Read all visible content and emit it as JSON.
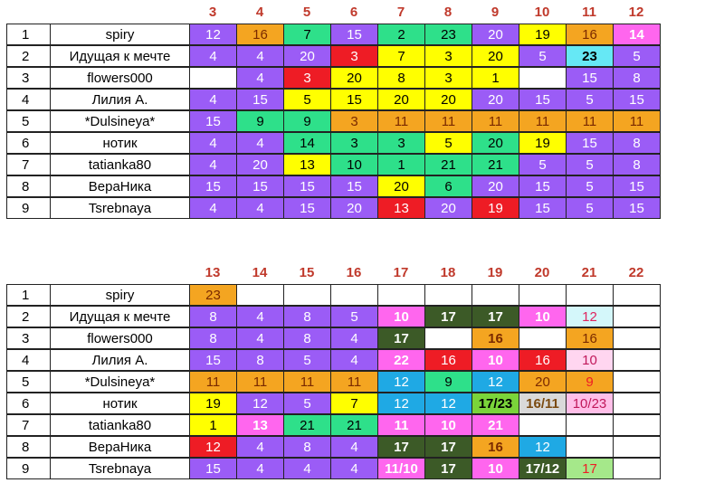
{
  "colors": {
    "P": "#9b5cf6",
    "O": "#f4a521",
    "G": "#2ee08a",
    "R": "#ee1c25",
    "Y": "#ffff00",
    "K": "#ff66ee",
    "C": "#66e8f5",
    "W": "#ffffff",
    "D": "#3c5a27",
    "B": "#1fa9e4",
    "L": "#7ad43a",
    "LG": "#a5e88a",
    "LP": "#ffbfe8",
    "PC": "#ffd6f0",
    "LC": "#d4f7fa",
    "T": "#d9d9d9"
  },
  "table1": {
    "headers": [
      "3",
      "4",
      "5",
      "6",
      "7",
      "8",
      "9",
      "10",
      "11",
      "12"
    ],
    "rows": [
      {
        "num": "1",
        "name": "spiry",
        "cells": [
          {
            "v": "12",
            "bg": "P"
          },
          {
            "v": "16",
            "bg": "O",
            "fg": "#7a2a00"
          },
          {
            "v": "7",
            "bg": "G",
            "fg": "#000"
          },
          {
            "v": "15",
            "bg": "P"
          },
          {
            "v": "2",
            "bg": "G",
            "fg": "#000"
          },
          {
            "v": "23",
            "bg": "G",
            "fg": "#000"
          },
          {
            "v": "20",
            "bg": "P"
          },
          {
            "v": "19",
            "bg": "Y",
            "fg": "#000"
          },
          {
            "v": "16",
            "bg": "O",
            "fg": "#7a2a00"
          },
          {
            "v": "14",
            "bg": "K",
            "b": true
          }
        ]
      },
      {
        "num": "2",
        "name": "Идущая к мечте",
        "cells": [
          {
            "v": "4",
            "bg": "P"
          },
          {
            "v": "4",
            "bg": "P"
          },
          {
            "v": "20",
            "bg": "P"
          },
          {
            "v": "3",
            "bg": "R"
          },
          {
            "v": "7",
            "bg": "Y",
            "fg": "#000"
          },
          {
            "v": "3",
            "bg": "Y",
            "fg": "#000"
          },
          {
            "v": "20",
            "bg": "Y",
            "fg": "#000"
          },
          {
            "v": "5",
            "bg": "P"
          },
          {
            "v": "23",
            "bg": "C",
            "fg": "#000",
            "b": true
          },
          {
            "v": "5",
            "bg": "P"
          }
        ]
      },
      {
        "num": "3",
        "name": "flowers000",
        "cells": [
          {
            "v": "",
            "bg": "W"
          },
          {
            "v": "4",
            "bg": "P"
          },
          {
            "v": "3",
            "bg": "R"
          },
          {
            "v": "20",
            "bg": "Y",
            "fg": "#000"
          },
          {
            "v": "8",
            "bg": "Y",
            "fg": "#000"
          },
          {
            "v": "3",
            "bg": "Y",
            "fg": "#000"
          },
          {
            "v": "1",
            "bg": "Y",
            "fg": "#000"
          },
          {
            "v": "",
            "bg": "W"
          },
          {
            "v": "15",
            "bg": "P"
          },
          {
            "v": "8",
            "bg": "P"
          }
        ]
      },
      {
        "num": "4",
        "name": "Лилия А.",
        "cells": [
          {
            "v": "4",
            "bg": "P"
          },
          {
            "v": "15",
            "bg": "P"
          },
          {
            "v": "5",
            "bg": "Y",
            "fg": "#000"
          },
          {
            "v": "15",
            "bg": "Y",
            "fg": "#000"
          },
          {
            "v": "20",
            "bg": "Y",
            "fg": "#000"
          },
          {
            "v": "20",
            "bg": "Y",
            "fg": "#000"
          },
          {
            "v": "20",
            "bg": "P"
          },
          {
            "v": "15",
            "bg": "P"
          },
          {
            "v": "5",
            "bg": "P"
          },
          {
            "v": "15",
            "bg": "P"
          }
        ]
      },
      {
        "num": "5",
        "name": "*Dulsineya*",
        "cells": [
          {
            "v": "15",
            "bg": "P"
          },
          {
            "v": "9",
            "bg": "G",
            "fg": "#000"
          },
          {
            "v": "9",
            "bg": "G",
            "fg": "#000"
          },
          {
            "v": "3",
            "bg": "O",
            "fg": "#7a2a00"
          },
          {
            "v": "11",
            "bg": "O",
            "fg": "#7a2a00"
          },
          {
            "v": "11",
            "bg": "O",
            "fg": "#7a2a00"
          },
          {
            "v": "11",
            "bg": "O",
            "fg": "#7a2a00"
          },
          {
            "v": "11",
            "bg": "O",
            "fg": "#7a2a00"
          },
          {
            "v": "11",
            "bg": "O",
            "fg": "#7a2a00"
          },
          {
            "v": "11",
            "bg": "O",
            "fg": "#7a2a00"
          }
        ]
      },
      {
        "num": "6",
        "name": "нотик",
        "cells": [
          {
            "v": "4",
            "bg": "P"
          },
          {
            "v": "4",
            "bg": "P"
          },
          {
            "v": "14",
            "bg": "G",
            "fg": "#000"
          },
          {
            "v": "3",
            "bg": "G",
            "fg": "#000"
          },
          {
            "v": "3",
            "bg": "G",
            "fg": "#000"
          },
          {
            "v": "5",
            "bg": "Y",
            "fg": "#000"
          },
          {
            "v": "20",
            "bg": "G",
            "fg": "#000"
          },
          {
            "v": "19",
            "bg": "Y",
            "fg": "#000"
          },
          {
            "v": "15",
            "bg": "P"
          },
          {
            "v": "8",
            "bg": "P"
          }
        ]
      },
      {
        "num": "7",
        "name": "tatianka80",
        "cells": [
          {
            "v": "4",
            "bg": "P"
          },
          {
            "v": "20",
            "bg": "P"
          },
          {
            "v": "13",
            "bg": "Y",
            "fg": "#000"
          },
          {
            "v": "10",
            "bg": "G",
            "fg": "#000"
          },
          {
            "v": "1",
            "bg": "G",
            "fg": "#000"
          },
          {
            "v": "21",
            "bg": "G",
            "fg": "#000"
          },
          {
            "v": "21",
            "bg": "G",
            "fg": "#000"
          },
          {
            "v": "5",
            "bg": "P"
          },
          {
            "v": "5",
            "bg": "P"
          },
          {
            "v": "8",
            "bg": "P"
          }
        ]
      },
      {
        "num": "8",
        "name": "ВераНика",
        "cells": [
          {
            "v": "15",
            "bg": "P"
          },
          {
            "v": "15",
            "bg": "P"
          },
          {
            "v": "15",
            "bg": "P"
          },
          {
            "v": "15",
            "bg": "P"
          },
          {
            "v": "20",
            "bg": "Y",
            "fg": "#000"
          },
          {
            "v": "6",
            "bg": "G",
            "fg": "#000"
          },
          {
            "v": "20",
            "bg": "P"
          },
          {
            "v": "15",
            "bg": "P"
          },
          {
            "v": "5",
            "bg": "P"
          },
          {
            "v": "15",
            "bg": "P"
          }
        ]
      },
      {
        "num": "9",
        "name": "Tsrebnaya",
        "cells": [
          {
            "v": "4",
            "bg": "P"
          },
          {
            "v": "4",
            "bg": "P"
          },
          {
            "v": "15",
            "bg": "P"
          },
          {
            "v": "20",
            "bg": "P"
          },
          {
            "v": "13",
            "bg": "R"
          },
          {
            "v": "20",
            "bg": "P"
          },
          {
            "v": "19",
            "bg": "R"
          },
          {
            "v": "15",
            "bg": "P"
          },
          {
            "v": "5",
            "bg": "P"
          },
          {
            "v": "15",
            "bg": "P"
          }
        ]
      }
    ]
  },
  "table2": {
    "headers": [
      "13",
      "14",
      "15",
      "16",
      "17",
      "18",
      "19",
      "20",
      "21",
      "22"
    ],
    "rows": [
      {
        "num": "1",
        "name": "spiry",
        "cells": [
          {
            "v": "23",
            "bg": "O",
            "fg": "#7a2a00"
          },
          {
            "v": "",
            "bg": "W"
          },
          {
            "v": "",
            "bg": "W"
          },
          {
            "v": "",
            "bg": "W"
          },
          {
            "v": "",
            "bg": "W"
          },
          {
            "v": "",
            "bg": "W"
          },
          {
            "v": "",
            "bg": "W"
          },
          {
            "v": "",
            "bg": "W"
          },
          {
            "v": "",
            "bg": "W"
          },
          {
            "v": "",
            "bg": "W"
          }
        ]
      },
      {
        "num": "2",
        "name": "Идущая к мечте",
        "cells": [
          {
            "v": "8",
            "bg": "P"
          },
          {
            "v": "4",
            "bg": "P"
          },
          {
            "v": "8",
            "bg": "P"
          },
          {
            "v": "5",
            "bg": "P"
          },
          {
            "v": "10",
            "bg": "K",
            "b": true
          },
          {
            "v": "17",
            "bg": "D",
            "b": true
          },
          {
            "v": "17",
            "bg": "D",
            "b": true
          },
          {
            "v": "10",
            "bg": "K",
            "b": true
          },
          {
            "v": "12",
            "bg": "LC",
            "fg": "#e0245e"
          },
          {
            "v": "",
            "bg": "W"
          }
        ]
      },
      {
        "num": "3",
        "name": "flowers000",
        "cells": [
          {
            "v": "8",
            "bg": "P"
          },
          {
            "v": "4",
            "bg": "P"
          },
          {
            "v": "8",
            "bg": "P"
          },
          {
            "v": "4",
            "bg": "P"
          },
          {
            "v": "17",
            "bg": "D",
            "b": true
          },
          {
            "v": "",
            "bg": "W"
          },
          {
            "v": "16",
            "bg": "O",
            "fg": "#7a2a00",
            "b": true
          },
          {
            "v": "",
            "bg": "W"
          },
          {
            "v": "16",
            "bg": "O",
            "fg": "#7a2a00"
          },
          {
            "v": "",
            "bg": "W"
          }
        ]
      },
      {
        "num": "4",
        "name": "Лилия А.",
        "cells": [
          {
            "v": "15",
            "bg": "P"
          },
          {
            "v": "8",
            "bg": "P"
          },
          {
            "v": "5",
            "bg": "P"
          },
          {
            "v": "4",
            "bg": "P"
          },
          {
            "v": "22",
            "bg": "K",
            "b": true
          },
          {
            "v": "16",
            "bg": "R"
          },
          {
            "v": "10",
            "bg": "K",
            "b": true
          },
          {
            "v": "16",
            "bg": "R"
          },
          {
            "v": "10",
            "bg": "PC",
            "fg": "#c0185a"
          },
          {
            "v": "",
            "bg": "W"
          }
        ]
      },
      {
        "num": "5",
        "name": "*Dulsineya*",
        "cells": [
          {
            "v": "11",
            "bg": "O",
            "fg": "#7a2a00"
          },
          {
            "v": "11",
            "bg": "O",
            "fg": "#7a2a00"
          },
          {
            "v": "11",
            "bg": "O",
            "fg": "#7a2a00"
          },
          {
            "v": "11",
            "bg": "O",
            "fg": "#7a2a00"
          },
          {
            "v": "12",
            "bg": "B"
          },
          {
            "v": "9",
            "bg": "G",
            "fg": "#000"
          },
          {
            "v": "12",
            "bg": "B"
          },
          {
            "v": "20",
            "bg": "O",
            "fg": "#7a2a00"
          },
          {
            "v": "9",
            "bg": "O",
            "fg": "#ee1c25"
          },
          {
            "v": "",
            "bg": "W"
          }
        ]
      },
      {
        "num": "6",
        "name": "нотик",
        "cells": [
          {
            "v": "19",
            "bg": "Y",
            "fg": "#000"
          },
          {
            "v": "12",
            "bg": "P"
          },
          {
            "v": "5",
            "bg": "P"
          },
          {
            "v": "7",
            "bg": "Y",
            "fg": "#000"
          },
          {
            "v": "12",
            "bg": "B"
          },
          {
            "v": "12",
            "bg": "B"
          },
          {
            "v": "17/23",
            "bg": "L",
            "fg": "#000",
            "b": true
          },
          {
            "v": "16/11",
            "bg": "T",
            "fg": "#7a4a10",
            "b": true
          },
          {
            "v": "10/23",
            "bg": "LP",
            "fg": "#c0185a"
          },
          {
            "v": "",
            "bg": "W"
          }
        ]
      },
      {
        "num": "7",
        "name": "tatianka80",
        "cells": [
          {
            "v": "1",
            "bg": "Y",
            "fg": "#000"
          },
          {
            "v": "13",
            "bg": "K",
            "b": true
          },
          {
            "v": "21",
            "bg": "G",
            "fg": "#000"
          },
          {
            "v": "21",
            "bg": "G",
            "fg": "#000"
          },
          {
            "v": "11",
            "bg": "K",
            "b": true
          },
          {
            "v": "10",
            "bg": "K",
            "b": true
          },
          {
            "v": "21",
            "bg": "K",
            "b": true
          },
          {
            "v": "",
            "bg": "W"
          },
          {
            "v": "",
            "bg": "W"
          },
          {
            "v": "",
            "bg": "W"
          }
        ]
      },
      {
        "num": "8",
        "name": "ВераНика",
        "cells": [
          {
            "v": "12",
            "bg": "R"
          },
          {
            "v": "4",
            "bg": "P"
          },
          {
            "v": "8",
            "bg": "P"
          },
          {
            "v": "4",
            "bg": "P"
          },
          {
            "v": "17",
            "bg": "D",
            "b": true
          },
          {
            "v": "17",
            "bg": "D",
            "b": true
          },
          {
            "v": "16",
            "bg": "O",
            "fg": "#7a2a00",
            "b": true
          },
          {
            "v": "12",
            "bg": "B"
          },
          {
            "v": "",
            "bg": "W"
          },
          {
            "v": "",
            "bg": "W"
          }
        ]
      },
      {
        "num": "9",
        "name": "Tsrebnaya",
        "cells": [
          {
            "v": "15",
            "bg": "P"
          },
          {
            "v": "4",
            "bg": "P"
          },
          {
            "v": "4",
            "bg": "P"
          },
          {
            "v": "4",
            "bg": "P"
          },
          {
            "v": "11/10",
            "bg": "K",
            "b": true
          },
          {
            "v": "17",
            "bg": "D",
            "b": true
          },
          {
            "v": "10",
            "bg": "K",
            "b": true
          },
          {
            "v": "17/12",
            "bg": "D",
            "b": true
          },
          {
            "v": "17",
            "bg": "LG",
            "fg": "#ee1c25"
          },
          {
            "v": "",
            "bg": "W"
          }
        ]
      }
    ]
  }
}
